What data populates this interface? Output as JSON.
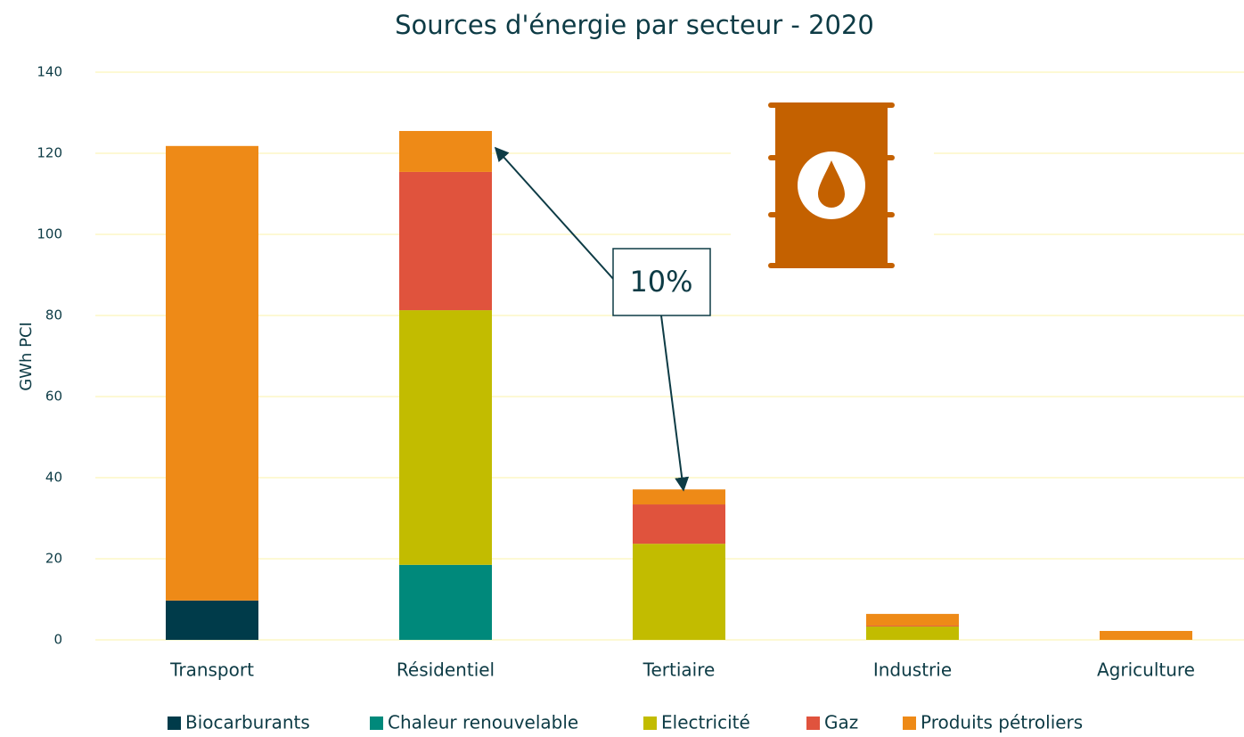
{
  "chart_data": {
    "type": "stacked_bar",
    "title": "Sources d'énergie par secteur - 2020",
    "y_label": "GWh PCI",
    "annotation": "10%",
    "categories": [
      "Transport",
      "Résidentiel",
      "Tertiaire",
      "Industrie",
      "Agriculture"
    ],
    "series": [
      {
        "name": "Biocarburants",
        "color": "#003b4a",
        "values": [
          9.7,
          null,
          null,
          null,
          null
        ]
      },
      {
        "name": "Chaleur renouvelable",
        "color": "#00897b",
        "values": [
          null,
          18.5,
          null,
          null,
          null
        ]
      },
      {
        "name": "Electricité",
        "color": "#c2bc00",
        "values": [
          null,
          62.8,
          23.7,
          3.3,
          null
        ]
      },
      {
        "name": "Gaz",
        "color": "#e0533d",
        "values": [
          null,
          34.1,
          9.7,
          0.2,
          null
        ]
      },
      {
        "name": "Produits pétroliers",
        "color": "#ee8a17",
        "values": [
          112.1,
          10.1,
          3.7,
          2.9,
          2.2
        ]
      }
    ],
    "ylim": [
      0,
      140
    ],
    "yticks": [
      0,
      20,
      40,
      60,
      80,
      100,
      120,
      140
    ],
    "grid": true
  }
}
